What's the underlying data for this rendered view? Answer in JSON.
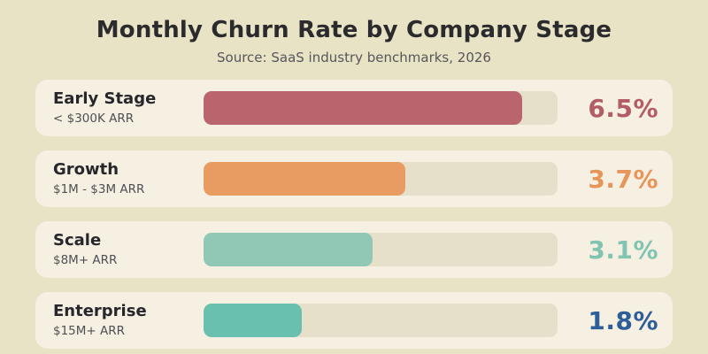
{
  "page": {
    "background_color": "#e8e3c4",
    "card_color": "#f6f0e2",
    "track_color": "#e6dfc9"
  },
  "header": {
    "title": "Monthly Churn Rate by Company Stage",
    "subtitle": "Source: SaaS industry benchmarks, 2026"
  },
  "chart_data": {
    "type": "bar",
    "orientation": "horizontal",
    "title": "Monthly Churn Rate by Company Stage",
    "subtitle": "Source: SaaS industry benchmarks, 2026",
    "unit": "%",
    "axis_max": 6.5,
    "max_fill_fraction": 0.9,
    "categories": [
      "Early Stage",
      "Growth",
      "Scale",
      "Enterprise"
    ],
    "values": [
      6.5,
      3.7,
      3.1,
      1.8
    ],
    "rows": [
      {
        "label": "Early Stage",
        "sublabel": "< $300K ARR",
        "value": 6.5,
        "value_label": "6.5%",
        "bar_color": "#ba656d",
        "value_color": "#b25c66"
      },
      {
        "label": "Growth",
        "sublabel": "$1M - $3M ARR",
        "value": 3.7,
        "value_label": "3.7%",
        "bar_color": "#e89c62",
        "value_color": "#e6955b"
      },
      {
        "label": "Scale",
        "sublabel": "$8M+ ARR",
        "value": 3.1,
        "value_label": "3.1%",
        "bar_color": "#90c8b5",
        "value_color": "#82c4b2"
      },
      {
        "label": "Enterprise",
        "sublabel": "$15M+ ARR",
        "value": 1.8,
        "value_label": "1.8%",
        "bar_color": "#69c0ae",
        "value_color": "#2e5e97"
      }
    ]
  }
}
